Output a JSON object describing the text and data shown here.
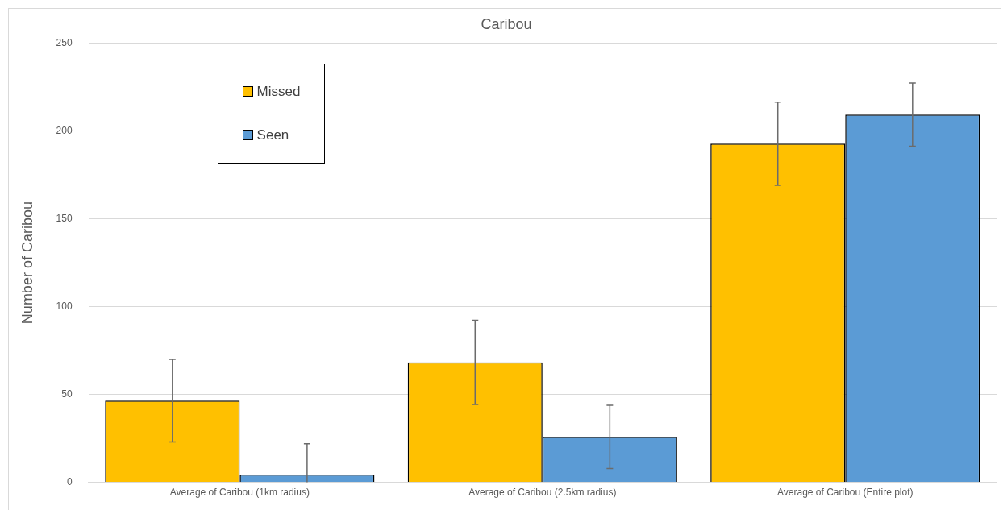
{
  "chart_data": {
    "type": "bar",
    "title": "Caribou",
    "ylabel": "Number of Caribou",
    "categories": [
      "Average of Caribou (1km radius)",
      "Average of Caribou (2.5km radius)",
      "Average of Caribou (Entire plot)"
    ],
    "series": [
      {
        "name": "Missed",
        "color": "#ffc000",
        "values": [
          46.5,
          68.3,
          192.8
        ],
        "errors": [
          23.5,
          24,
          23.7
        ]
      },
      {
        "name": "Seen",
        "color": "#5b9bd5",
        "values": [
          4.4,
          25.9,
          209.3
        ],
        "errors": [
          [
            0,
            22
          ],
          18,
          18
        ]
      }
    ],
    "ylim": [
      0,
      250
    ],
    "yticks": [
      0,
      50,
      100,
      150,
      200,
      250
    ],
    "grid": "y",
    "legend": "top left"
  }
}
